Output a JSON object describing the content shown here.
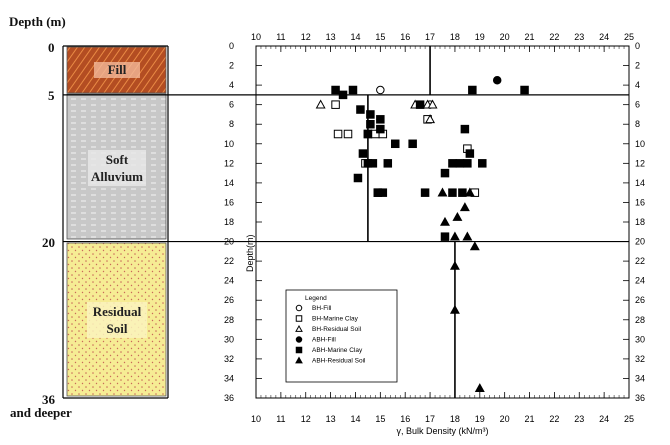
{
  "page_caption": "Depth (m)",
  "left_depth_marks": [
    "0",
    "5",
    "20",
    "36"
  ],
  "left_bottom_note": "and deeper",
  "layers": [
    {
      "name": "Fill",
      "name_lines": [
        "Fill"
      ],
      "top_depth": 0,
      "bottom_depth": 5,
      "color": "#b5522a"
    },
    {
      "name": "Soft Alluvium",
      "name_lines": [
        "Soft",
        "Alluvium"
      ],
      "top_depth": 5,
      "bottom_depth": 20,
      "color": "#c9c9c9"
    },
    {
      "name": "Residual Soil",
      "name_lines": [
        "Residual",
        "Soil"
      ],
      "top_depth": 20,
      "bottom_depth": 36,
      "color": "#f7ec9a"
    }
  ],
  "chart_data": {
    "type": "scatter",
    "xlabel": "γ, Bulk Density (kN/m³)",
    "ylabel": "Depth(m)",
    "xlim": [
      10,
      25
    ],
    "ylim": [
      0,
      36
    ],
    "y_inverted": true,
    "x_ticks": [
      10,
      11,
      12,
      13,
      14,
      15,
      16,
      17,
      18,
      19,
      20,
      21,
      22,
      23,
      24,
      25
    ],
    "y_ticks": [
      0,
      2,
      4,
      6,
      8,
      10,
      12,
      14,
      16,
      18,
      20,
      22,
      24,
      26,
      28,
      30,
      32,
      34,
      36
    ],
    "layer_boundaries": [
      5,
      20
    ],
    "design_lines": [
      {
        "x": 17,
        "depth_from": 0,
        "depth_to": 5
      },
      {
        "x": 14.5,
        "depth_from": 5,
        "depth_to": 20
      },
      {
        "x": 18,
        "depth_from": 20,
        "depth_to": 36
      }
    ],
    "legend": {
      "title": "Legend",
      "entries": [
        "BH-Fill",
        "BH-Marine Clay",
        "BH-Residual Soil",
        "ABH-Fill",
        "ABH-Marine Clay",
        "ABH-Residual Soil"
      ]
    },
    "series": [
      {
        "name": "BH-Fill",
        "marker": "circle",
        "filled": false,
        "points": [
          [
            15,
            4.5
          ],
          [
            17,
            6
          ]
        ]
      },
      {
        "name": "BH-Marine Clay",
        "marker": "square",
        "filled": false,
        "points": [
          [
            13.2,
            6
          ],
          [
            13.3,
            9
          ],
          [
            13.7,
            9
          ],
          [
            14.5,
            9
          ],
          [
            14.8,
            9
          ],
          [
            15.1,
            9
          ],
          [
            14.4,
            12
          ],
          [
            14.9,
            15
          ],
          [
            18.5,
            10.5
          ],
          [
            18.8,
            15
          ],
          [
            16.9,
            7.5
          ]
        ]
      },
      {
        "name": "BH-Residual Soil",
        "marker": "triangle",
        "filled": false,
        "points": [
          [
            12.6,
            6
          ],
          [
            16.4,
            6
          ],
          [
            16.9,
            6
          ],
          [
            17.1,
            6
          ],
          [
            17.0,
            7.5
          ]
        ]
      },
      {
        "name": "ABH-Fill",
        "marker": "circle",
        "filled": true,
        "points": [
          [
            19.7,
            3.5
          ]
        ]
      },
      {
        "name": "ABH-Marine Clay",
        "marker": "square",
        "filled": true,
        "points": [
          [
            13.2,
            4.5
          ],
          [
            13.5,
            5
          ],
          [
            13.9,
            4.5
          ],
          [
            14.2,
            6.5
          ],
          [
            14.6,
            7
          ],
          [
            15,
            7.5
          ],
          [
            14.6,
            8
          ],
          [
            15,
            8.5
          ],
          [
            14.5,
            9
          ],
          [
            15.6,
            10
          ],
          [
            14.3,
            11
          ],
          [
            14.5,
            12
          ],
          [
            14.7,
            12
          ],
          [
            15.3,
            12
          ],
          [
            14.1,
            13.5
          ],
          [
            14.9,
            15
          ],
          [
            15.1,
            15
          ],
          [
            16.3,
            10
          ],
          [
            16.6,
            6
          ],
          [
            17.6,
            13
          ],
          [
            17.9,
            12
          ],
          [
            18.2,
            12
          ],
          [
            18.5,
            12
          ],
          [
            18.6,
            11
          ],
          [
            19.1,
            12
          ],
          [
            18.4,
            8.5
          ],
          [
            18.7,
            4.5
          ],
          [
            20.8,
            4.5
          ],
          [
            16.8,
            15
          ],
          [
            17.9,
            15
          ],
          [
            18.3,
            15
          ],
          [
            17.6,
            19.5
          ]
        ]
      },
      {
        "name": "ABH-Residual Soil",
        "marker": "triangle",
        "filled": true,
        "points": [
          [
            17.5,
            15
          ],
          [
            17.6,
            18
          ],
          [
            18.1,
            17.5
          ],
          [
            18.4,
            16.5
          ],
          [
            18.6,
            15
          ],
          [
            18.0,
            19.5
          ],
          [
            18.5,
            19.5
          ],
          [
            18.8,
            20.5
          ],
          [
            18.0,
            22.5
          ],
          [
            18.0,
            27
          ],
          [
            19.0,
            35
          ]
        ]
      }
    ]
  }
}
